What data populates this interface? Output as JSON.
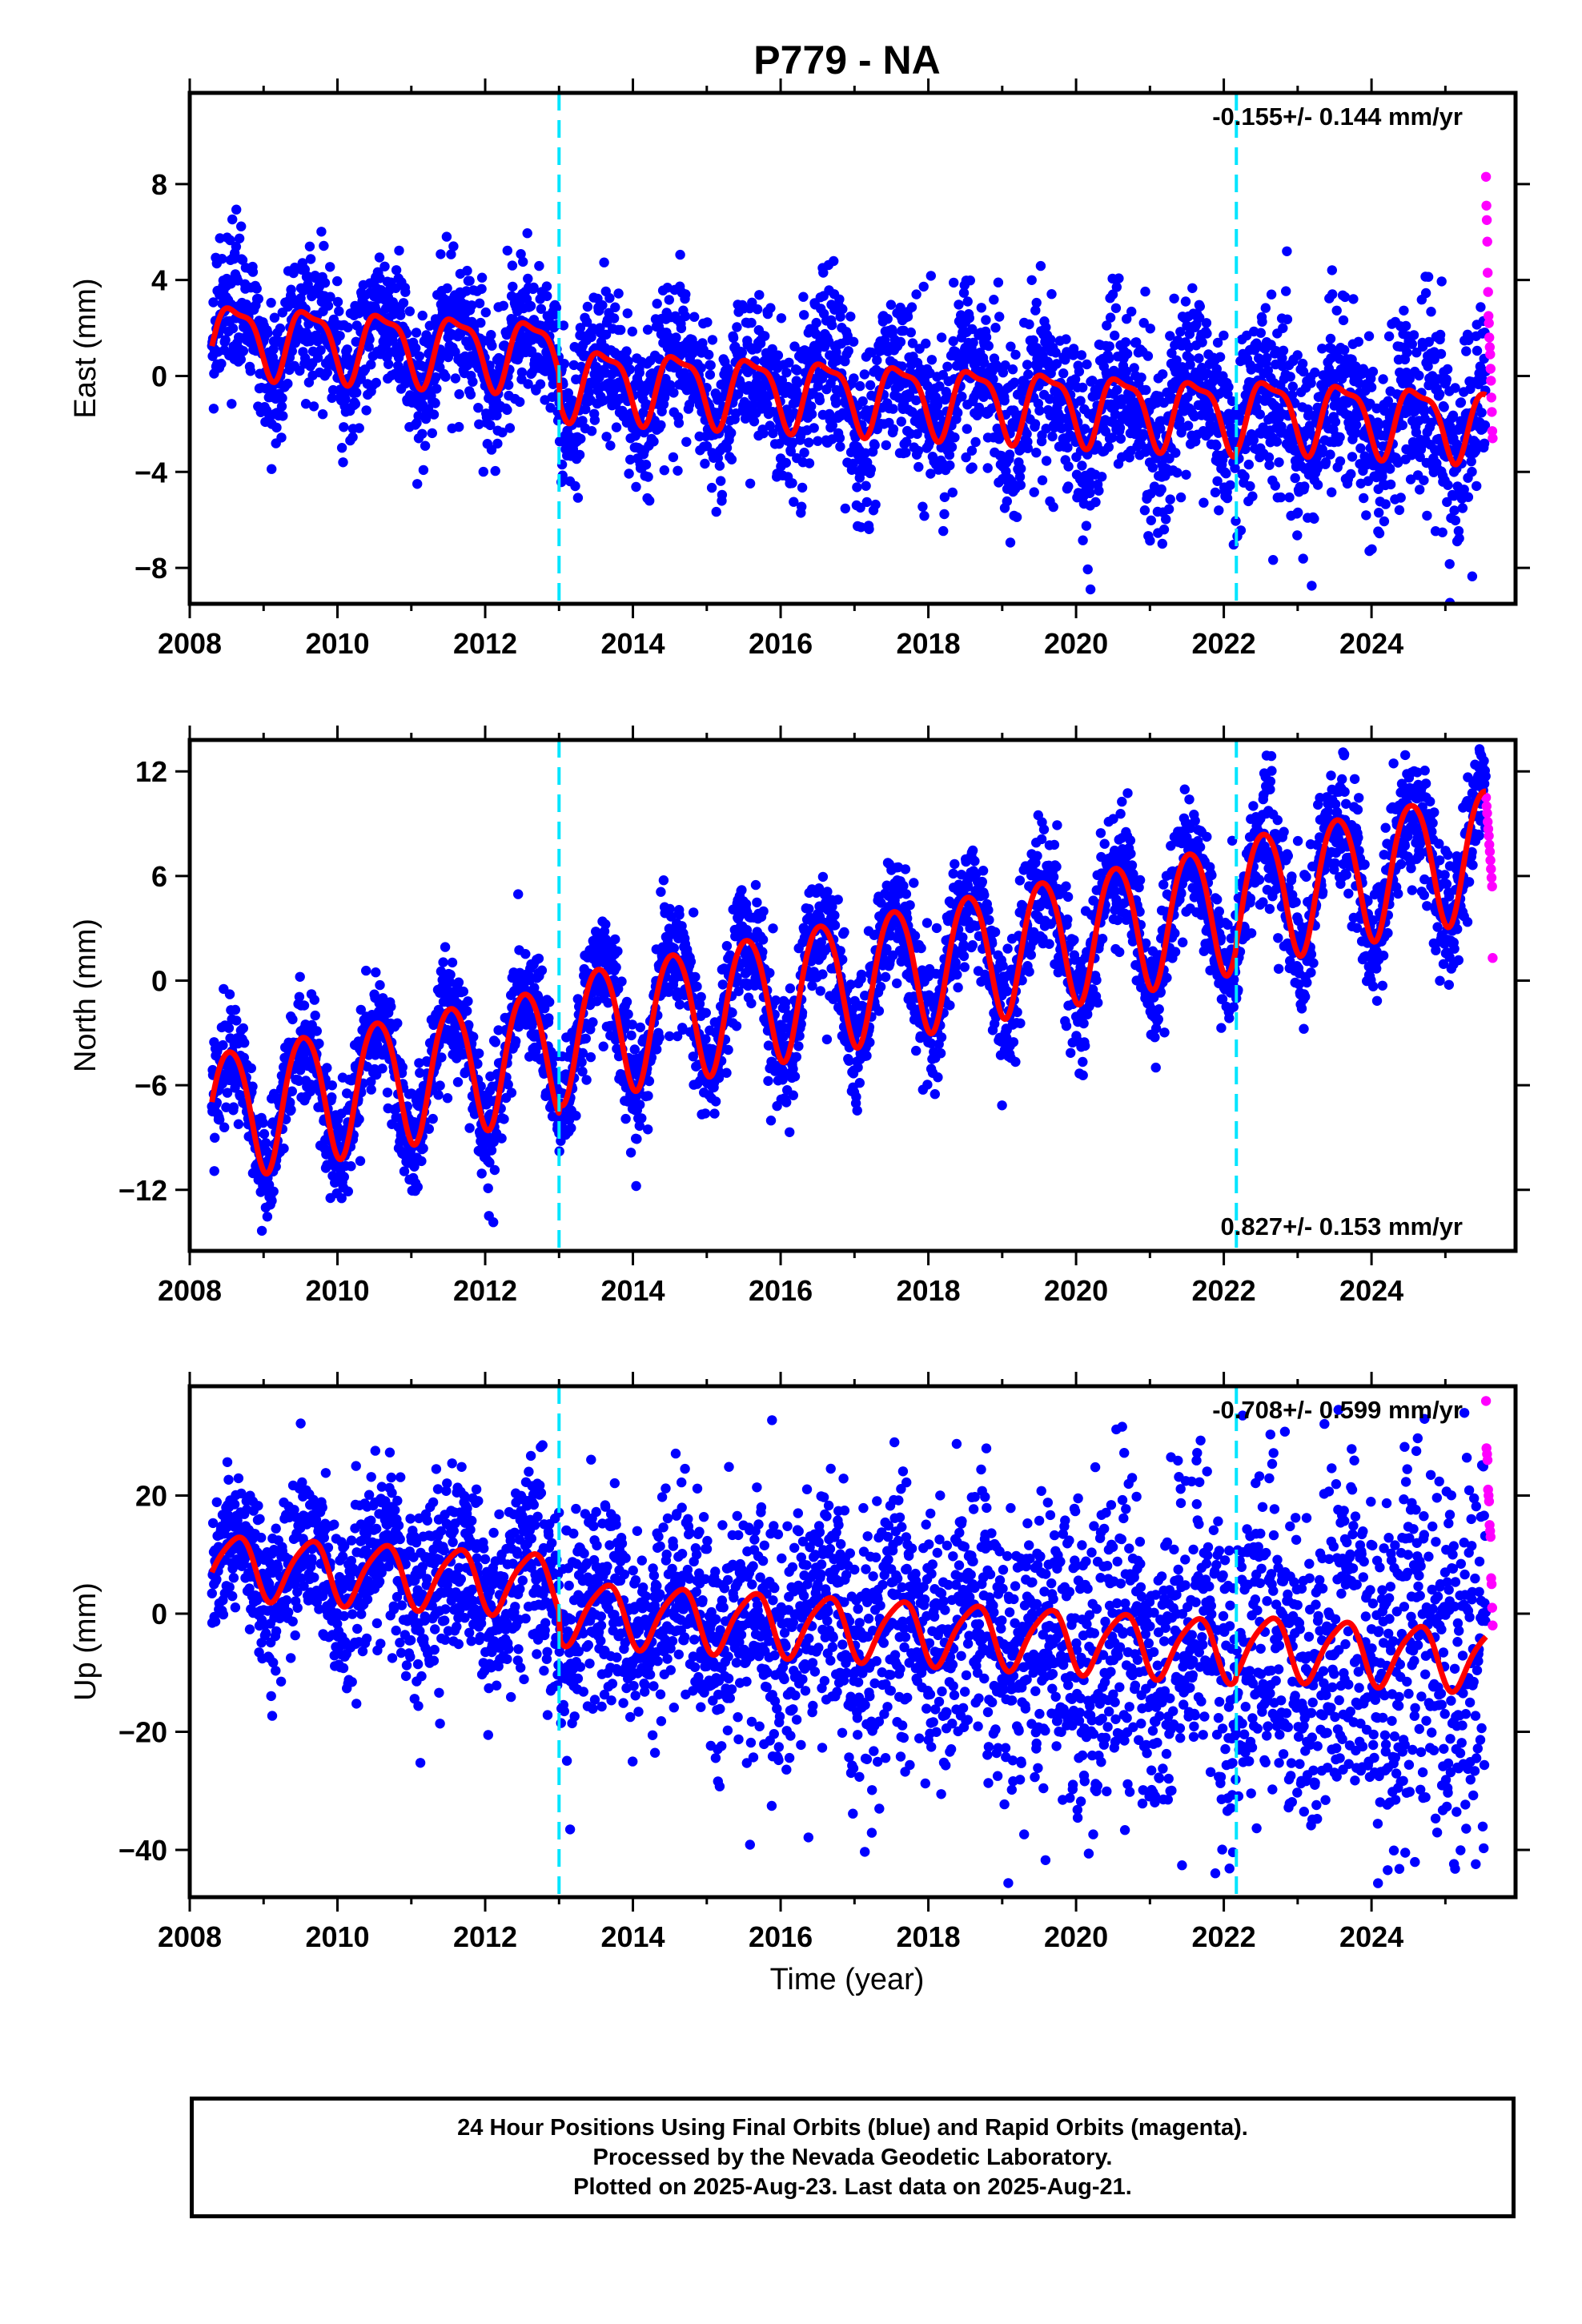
{
  "title": "P779 - NA",
  "x_axis_label": "Time (year)",
  "footer": {
    "line1": "24 Hour Positions Using Final Orbits (blue) and Rapid Orbits (magenta).",
    "line2": "Processed by the Nevada Geodetic Laboratory.",
    "line3": "Plotted on 2025-Aug-23. Last data on 2025-Aug-21."
  },
  "colors": {
    "final_orbits": "#0000ff",
    "rapid_orbits": "#ff00ff",
    "model_fit": "#ff0000",
    "equipment_change": "#00e5ff",
    "axes": "#000000"
  },
  "chart_data": [
    {
      "type": "scatter",
      "component": "east",
      "ylabel": "East (mm)",
      "rate_label": "-0.155+/- 0.144 mm/yr",
      "rate_position": "top-right",
      "xlim": [
        2008.0,
        2025.95
      ],
      "ylim": [
        -9.5,
        11.8
      ],
      "yticks": [
        -8,
        -4,
        0,
        4,
        8
      ],
      "xticks": [
        2008,
        2010,
        2012,
        2014,
        2016,
        2018,
        2020,
        2022,
        2024
      ],
      "equipment_changes": [
        2013.0,
        2022.17
      ],
      "data_span": [
        2008.3,
        2025.55
      ],
      "rapid_span": [
        2025.55,
        2025.64
      ],
      "model": {
        "base": 1.7,
        "rate": -0.155,
        "annual_amp": 1.4,
        "annual_phase": 0.62,
        "semiannual_amp": 0.45,
        "semiannual_phase": 0.4,
        "offsets": [
          {
            "time": 2013.0,
            "size": -1.1
          },
          {
            "time": 2022.17,
            "size": 0.15
          }
        ],
        "noise": 1.3,
        "noise_increase": 0.6
      },
      "rapid_values": [
        8.3,
        7.1,
        6.5,
        5.6,
        4.3,
        3.5,
        2.5,
        2.2,
        1.6,
        1.2,
        0.9,
        0.3,
        -0.2,
        -0.9,
        -1.5,
        -2.3,
        -2.6
      ]
    },
    {
      "type": "scatter",
      "component": "north",
      "ylabel": "North (mm)",
      "rate_label": "0.827+/- 0.153 mm/yr",
      "rate_position": "bottom-right",
      "xlim": [
        2008.0,
        2025.95
      ],
      "ylim": [
        -15.5,
        13.8
      ],
      "yticks": [
        -12,
        -6,
        0,
        6,
        12
      ],
      "xticks": [
        2008,
        2010,
        2012,
        2014,
        2016,
        2018,
        2020,
        2022,
        2024
      ],
      "equipment_changes": [
        2013.0,
        2022.17
      ],
      "data_span": [
        2008.3,
        2025.55
      ],
      "rapid_span": [
        2025.55,
        2025.64
      ],
      "model": {
        "base": -7.6,
        "rate": 0.827,
        "annual_amp": 3.7,
        "annual_phase": 0.54,
        "semiannual_amp": 0.4,
        "semiannual_phase": 0.3,
        "offsets": [
          {
            "time": 2013.0,
            "size": 0.6
          },
          {
            "time": 2022.17,
            "size": 0.3
          }
        ],
        "noise": 1.6,
        "noise_increase": 0.2
      },
      "rapid_values": [
        10.5,
        10.0,
        9.6,
        9.1,
        8.7,
        8.3,
        7.8,
        7.4,
        6.9,
        6.4,
        5.9,
        5.4,
        1.3
      ]
    },
    {
      "type": "scatter",
      "component": "up",
      "ylabel": "Up (mm)",
      "rate_label": "-0.708+/- 0.599 mm/yr",
      "rate_position": "top-right",
      "xlim": [
        2008.0,
        2025.95
      ],
      "ylim": [
        -48,
        38.5
      ],
      "yticks": [
        -40,
        -20,
        0,
        20
      ],
      "xticks": [
        2008,
        2010,
        2012,
        2014,
        2016,
        2018,
        2020,
        2022,
        2024
      ],
      "equipment_changes": [
        2013.0,
        2022.17
      ],
      "data_span": [
        2008.3,
        2025.55
      ],
      "rapid_span": [
        2025.55,
        2025.64
      ],
      "model": {
        "base": 8.3,
        "rate": -0.708,
        "annual_amp": 5.2,
        "annual_phase": 0.62,
        "semiannual_amp": 0.9,
        "semiannual_phase": 0.3,
        "offsets": [
          {
            "time": 2013.0,
            "size": -4.6
          },
          {
            "time": 2022.17,
            "size": 0.8
          }
        ],
        "noise": 5.8,
        "noise_increase": 1.8
      },
      "rapid_values": [
        36,
        28,
        27,
        26,
        21,
        20,
        19,
        15,
        14,
        13,
        6,
        5,
        1,
        -2
      ]
    }
  ]
}
